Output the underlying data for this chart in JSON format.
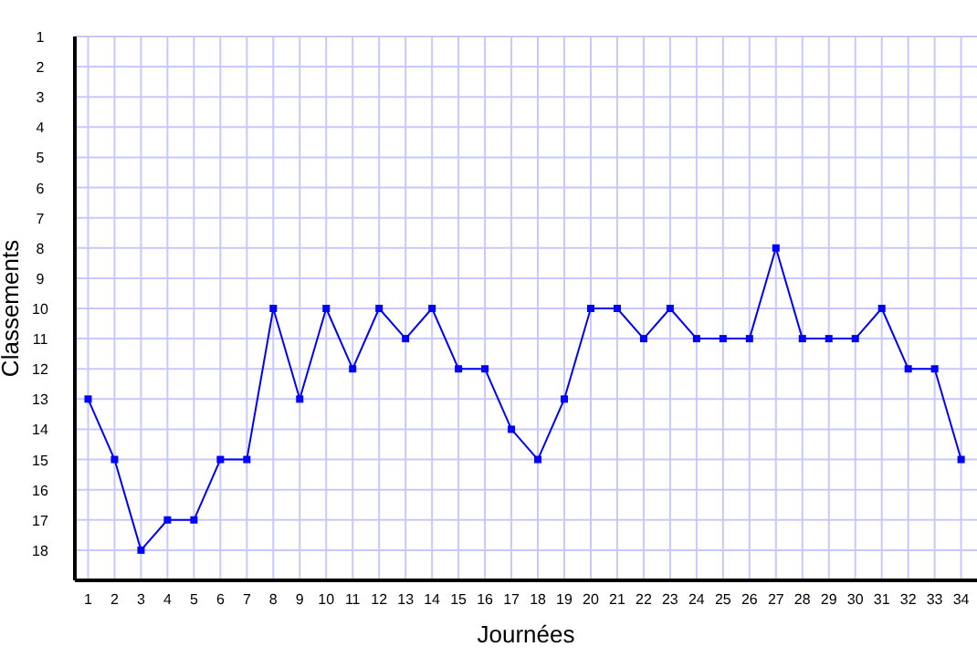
{
  "chart_data": {
    "type": "line",
    "xlabel": "Journées",
    "ylabel": "Classements",
    "x": [
      1,
      2,
      3,
      4,
      5,
      6,
      7,
      8,
      9,
      10,
      11,
      12,
      13,
      14,
      15,
      16,
      17,
      18,
      19,
      20,
      21,
      22,
      23,
      24,
      25,
      26,
      27,
      28,
      29,
      30,
      31,
      32,
      33,
      34
    ],
    "series": [
      {
        "color": "#0000ff",
        "values": [
          13,
          15,
          18,
          17,
          17,
          15,
          15,
          10,
          13,
          10,
          12,
          10,
          11,
          10,
          12,
          12,
          14,
          15,
          13,
          10,
          10,
          11,
          10,
          11,
          11,
          11,
          8,
          11,
          11,
          11,
          10,
          12,
          12,
          15
        ]
      }
    ],
    "xlim": [
      0.5,
      34.6
    ],
    "xticks": [
      1,
      2,
      3,
      4,
      5,
      6,
      7,
      8,
      9,
      10,
      11,
      12,
      13,
      14,
      15,
      16,
      17,
      18,
      19,
      20,
      21,
      22,
      23,
      24,
      25,
      26,
      27,
      28,
      29,
      30,
      31,
      32,
      33,
      34
    ],
    "ylim": [
      19,
      1
    ],
    "yticks": [
      1,
      2,
      3,
      4,
      5,
      6,
      7,
      8,
      9,
      10,
      11,
      12,
      13,
      14,
      15,
      16,
      17,
      18
    ],
    "grid": true,
    "marker": "square",
    "line_style": "solid"
  }
}
